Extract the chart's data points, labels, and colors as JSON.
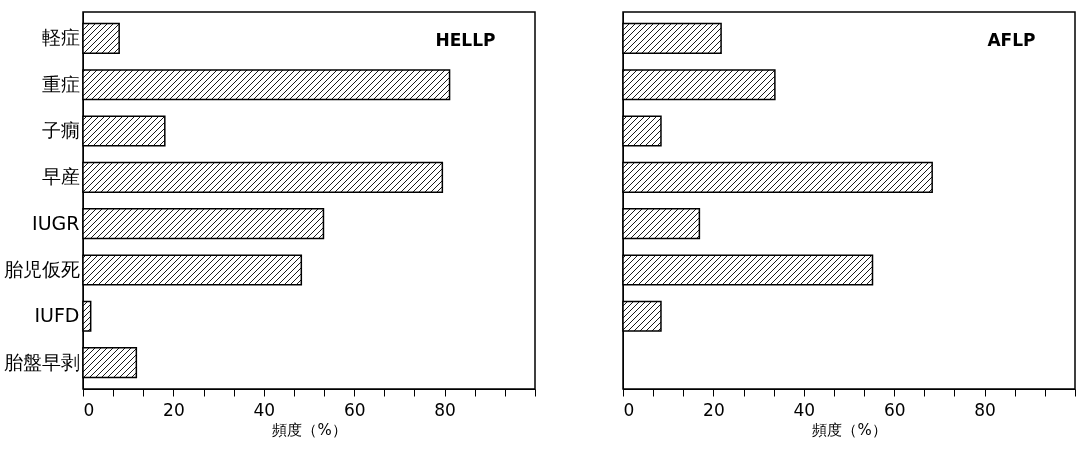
{
  "chart_data": [
    {
      "type": "bar",
      "orientation": "horizontal",
      "title": "HELLP",
      "xlabel": "頻度（%）",
      "categories": [
        "軽症",
        "重症",
        "子癇",
        "早産",
        "IUGR",
        "胎児仮死",
        "IUFD",
        "胎盤早剥"
      ],
      "values": [
        8.0,
        81.1,
        18.1,
        79.5,
        53.2,
        48.3,
        1.7,
        11.8
      ],
      "color": "#000000",
      "xlim": [
        0,
        100
      ],
      "xticks": [
        0,
        {
          "value": 6.667,
          "label": null
        },
        {
          "value": 13.333,
          "label": null
        },
        20,
        {
          "value": 26.667,
          "label": null
        },
        {
          "value": 33.333,
          "label": null
        },
        40,
        {
          "value": 46.667,
          "label": null
        },
        {
          "value": 53.333,
          "label": null
        },
        60,
        {
          "value": 66.667,
          "label": null
        },
        {
          "value": 73.333,
          "label": null
        },
        80,
        {
          "value": 86.667,
          "label": null
        },
        {
          "value": 93.333,
          "label": null
        },
        {
          "value": 100,
          "label": null
        }
      ],
      "grid": false
    },
    {
      "type": "bar",
      "orientation": "horizontal",
      "title": "AFLP",
      "xlabel": "頻度（%）",
      "categories": [
        null,
        null,
        null,
        null,
        null,
        null,
        null,
        null
      ],
      "values": [
        21.7,
        33.6,
        8.4,
        68.4,
        16.9,
        55.2,
        8.4,
        null
      ],
      "color": "#000000",
      "xlim": [
        0,
        100
      ],
      "xticks": [
        0,
        {
          "value": 6.667,
          "label": null
        },
        {
          "value": 13.333,
          "label": null
        },
        20,
        {
          "value": 26.667,
          "label": null
        },
        {
          "value": 33.333,
          "label": null
        },
        40,
        {
          "value": 46.667,
          "label": null
        },
        {
          "value": 53.333,
          "label": null
        },
        60,
        {
          "value": 66.667,
          "label": null
        },
        {
          "value": 73.333,
          "label": null
        },
        80,
        {
          "value": 86.667,
          "label": null
        },
        {
          "value": 93.333,
          "label": null
        },
        {
          "value": 100,
          "label": null
        }
      ],
      "grid": false,
      "tick_labels": "x"
    }
  ]
}
